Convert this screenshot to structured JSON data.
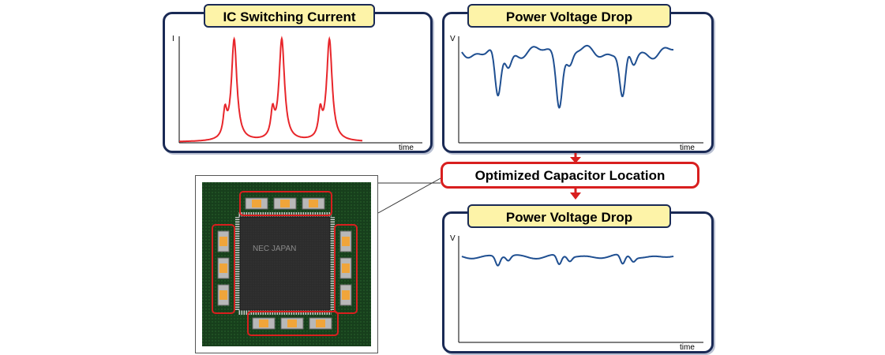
{
  "panels": {
    "ic_current": {
      "title": "IC Switching Current",
      "y_label": "I",
      "x_label": "time"
    },
    "voltage_before": {
      "title": "Power Voltage Drop",
      "y_label": "V",
      "x_label": "time"
    },
    "voltage_after": {
      "title": "Power Voltage Drop",
      "y_label": "V",
      "x_label": "time"
    }
  },
  "optimized_label": "Optimized Capacitor Location",
  "chip": {
    "label": "NEC JAPAN"
  },
  "colors": {
    "current_trace": "#e8262b",
    "voltage_trace": "#1f4f91",
    "frame": "#1a2a55",
    "title_fill": "#fdf3a8",
    "highlight": "#d81e1e",
    "pcb": "#173f1c"
  }
}
